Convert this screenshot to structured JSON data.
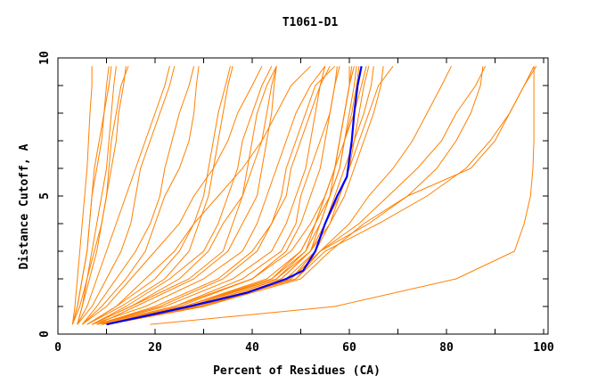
{
  "chart_data": {
    "type": "line",
    "title": "T1061-D1",
    "xlabel": "Percent of Residues (CA)",
    "ylabel": "Distance Cutoff, A",
    "xlim": [
      0,
      100
    ],
    "ylim": [
      0,
      10
    ],
    "xticks": [
      "0",
      "20",
      "40",
      "60",
      "80",
      "100"
    ],
    "yticks": [
      "0",
      "5",
      "10"
    ],
    "grid": false,
    "colors": {
      "models": "#ff8000",
      "highlight": "#0000ff"
    },
    "y_levels": [
      0.35,
      1,
      2,
      3,
      4,
      5,
      6,
      7,
      8,
      9,
      9.7
    ],
    "series": [
      [
        3,
        3.5,
        4,
        4.5,
        5,
        5.5,
        6,
        6.3,
        6.6,
        7,
        7
      ],
      [
        3,
        4,
        5,
        6,
        6.5,
        7,
        8,
        9,
        9.5,
        10,
        10.5
      ],
      [
        4,
        5,
        6,
        7,
        8,
        9,
        10,
        10.5,
        11,
        11.5,
        12
      ],
      [
        3,
        4.5,
        6,
        7.5,
        9,
        10,
        11,
        12,
        12.5,
        13.5,
        14
      ],
      [
        4,
        5,
        6.5,
        8,
        9,
        10,
        10.5,
        11,
        12,
        13,
        14.5
      ],
      [
        3,
        4,
        5,
        6,
        6.5,
        7,
        7.5,
        8.5,
        9.5,
        10.5,
        11
      ],
      [
        4,
        6,
        8,
        10,
        12,
        14,
        16,
        18,
        20,
        22,
        23
      ],
      [
        5,
        8,
        12,
        16,
        19,
        21,
        22,
        23.5,
        25,
        27,
        28
      ],
      [
        5,
        9,
        14,
        18,
        20,
        22,
        25,
        27,
        28,
        28.5,
        29
      ],
      [
        4,
        7,
        10,
        13,
        15,
        16,
        17,
        19,
        21,
        23,
        24
      ],
      [
        6,
        12,
        20,
        25,
        28,
        30,
        31,
        32,
        33,
        34.5,
        35.5
      ],
      [
        6,
        13,
        22,
        27,
        29,
        31,
        32,
        33,
        34,
        35,
        36
      ],
      [
        7,
        14,
        23,
        30,
        33,
        35,
        37,
        38,
        40,
        42,
        44
      ],
      [
        7,
        15,
        25,
        31,
        34,
        38,
        40,
        42,
        43,
        44,
        45
      ],
      [
        8,
        16,
        28,
        35,
        38,
        41,
        42,
        43,
        44,
        44.5,
        45
      ],
      [
        7,
        15,
        27,
        34,
        36,
        38,
        39,
        40,
        41,
        43,
        45
      ],
      [
        7,
        18,
        30,
        38,
        41,
        43,
        45,
        47,
        49,
        52,
        55
      ],
      [
        8,
        20,
        33,
        40,
        44,
        47,
        48,
        50,
        52,
        54,
        56
      ],
      [
        8,
        22,
        36,
        44,
        47,
        49,
        51,
        52,
        53,
        54,
        55
      ],
      [
        8,
        24,
        38,
        46,
        49,
        50,
        52,
        54,
        56,
        57,
        58
      ],
      [
        8,
        21,
        34,
        41,
        44,
        46,
        47,
        49,
        51,
        53,
        57
      ],
      [
        9,
        25,
        40,
        47,
        50,
        52,
        54,
        55,
        56,
        57,
        57.5
      ],
      [
        9,
        26,
        44,
        51,
        54,
        56,
        58,
        59,
        60,
        61,
        61.5
      ],
      [
        9,
        27,
        45,
        51,
        53,
        55,
        57,
        58,
        59,
        60,
        60.5
      ],
      [
        10,
        28,
        46,
        52,
        54,
        56,
        57,
        58,
        59,
        60,
        61
      ],
      [
        9,
        27,
        44,
        50,
        53,
        55,
        57,
        59,
        61,
        62.5,
        63.5
      ],
      [
        10,
        29,
        47,
        53,
        55,
        57,
        59,
        61,
        63,
        64.5,
        65
      ],
      [
        10,
        28,
        46,
        52,
        56,
        58,
        60,
        61,
        62,
        63,
        64
      ],
      [
        9,
        26,
        43,
        50,
        53,
        56,
        58,
        59,
        60.5,
        61.5,
        62
      ],
      [
        10,
        30,
        48,
        53,
        56,
        59,
        61,
        63,
        65,
        66.5,
        67
      ],
      [
        9,
        27,
        45,
        52,
        55,
        58,
        60,
        62,
        64,
        66,
        69
      ],
      [
        8,
        24,
        40,
        48,
        52,
        55,
        57,
        58,
        59,
        60,
        60
      ],
      [
        9,
        28,
        48,
        54,
        62,
        68,
        74,
        79,
        82,
        86,
        88
      ],
      [
        10,
        29,
        49,
        54,
        60,
        64,
        69,
        73,
        76,
        79,
        81
      ],
      [
        10,
        30,
        48,
        54,
        64,
        72,
        78,
        82,
        85,
        87,
        87.5
      ],
      [
        10,
        29,
        49,
        55,
        66,
        76,
        84,
        89,
        93,
        96,
        98
      ],
      [
        10,
        30,
        50,
        56,
        63,
        72,
        85,
        90,
        93,
        96,
        98.5
      ],
      [
        19,
        57,
        82,
        94,
        96,
        97.3,
        97.8,
        98,
        98,
        98,
        98
      ],
      [
        5,
        10,
        15,
        20,
        25,
        28,
        32,
        35,
        37,
        40,
        42
      ],
      [
        6,
        12,
        18,
        24,
        28,
        33,
        38,
        42,
        45,
        48,
        52
      ]
    ],
    "highlight_series": {
      "x": [
        10,
        27,
        39,
        47,
        50.5,
        53,
        55,
        57.5,
        59.5,
        60.5,
        61,
        61.7,
        62.5
      ],
      "y": [
        0.35,
        1,
        1.5,
        2,
        2.3,
        3,
        4,
        5,
        5.7,
        7,
        8,
        9,
        9.7
      ]
    }
  }
}
